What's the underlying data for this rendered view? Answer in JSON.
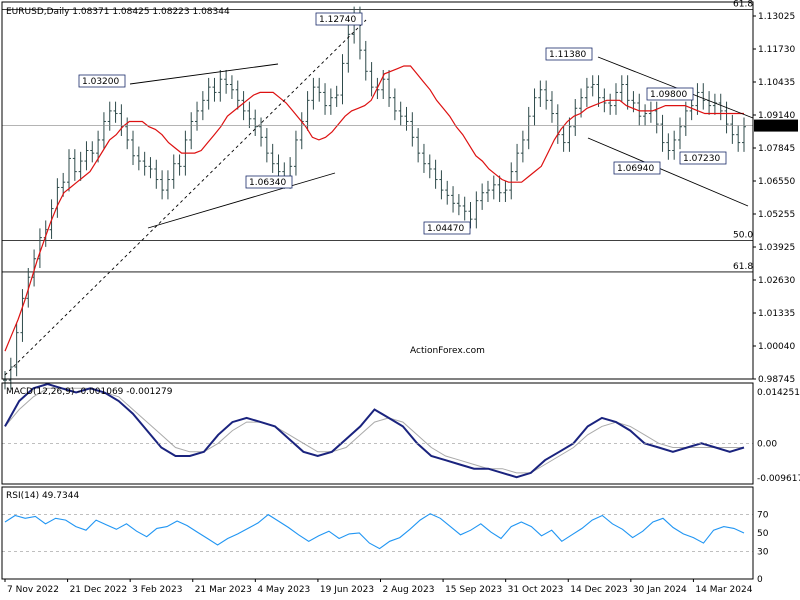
{
  "chart_data": {
    "type": "line",
    "symbol_header": "EURUSD,Daily  1.08371 1.08425 1.08223 1.08344",
    "watermark": "ActionForex.com",
    "last_price": "1.08344",
    "x_tick_labels": [
      "7 Nov 2022",
      "21 Dec 2022",
      "3 Feb 2023",
      "21 Mar 2023",
      "4 May 2023",
      "19 Jun 2023",
      "2 Aug 2023",
      "15 Sep 2023",
      "31 Oct 2023",
      "14 Dec 2023",
      "30 Jan 2024",
      "14 Mar 2024"
    ],
    "price_panel": {
      "ylim": [
        0.98745,
        1.13025
      ],
      "y_tick_labels": [
        "1.13025",
        "1.11730",
        "1.10435",
        "1.09140",
        "1.07845",
        "1.06550",
        "1.05255",
        "1.03925",
        "1.02630",
        "1.01335",
        "1.00040",
        "0.98745"
      ],
      "close_series": [
        0.987,
        0.992,
        1.005,
        1.018,
        1.026,
        1.033,
        1.041,
        1.044,
        1.052,
        1.06,
        1.062,
        1.071,
        1.066,
        1.07,
        1.074,
        1.073,
        1.078,
        1.085,
        1.089,
        1.088,
        1.083,
        1.078,
        1.072,
        1.07,
        1.068,
        1.067,
        1.063,
        1.059,
        1.063,
        1.069,
        1.068,
        1.078,
        1.085,
        1.089,
        1.093,
        1.098,
        1.096,
        1.101,
        1.099,
        1.097,
        1.093,
        1.089,
        1.086,
        1.083,
        1.079,
        1.073,
        1.069,
        1.066,
        1.063,
        1.068,
        1.078,
        1.085,
        1.093,
        1.098,
        1.096,
        1.091,
        1.094,
        1.095,
        1.107,
        1.118,
        1.125,
        1.112,
        1.104,
        1.098,
        1.097,
        1.101,
        1.094,
        1.089,
        1.087,
        1.085,
        1.079,
        1.073,
        1.069,
        1.067,
        1.063,
        1.059,
        1.057,
        1.054,
        1.053,
        1.051,
        1.048,
        1.055,
        1.058,
        1.059,
        1.061,
        1.058,
        1.059,
        1.066,
        1.073,
        1.078,
        1.087,
        1.094,
        1.097,
        1.093,
        1.088,
        1.08,
        1.077,
        1.083,
        1.09,
        1.094,
        1.098,
        1.099,
        1.094,
        1.092,
        1.091,
        1.096,
        1.099,
        1.093,
        1.092,
        1.087,
        1.088,
        1.089,
        1.084,
        1.077,
        1.074,
        1.078,
        1.083,
        1.089,
        1.091,
        1.096,
        1.093,
        1.091,
        1.092,
        1.089,
        1.084,
        1.08,
        1.077,
        1.083
      ],
      "ema_series": [
        0.998,
        1.004,
        1.01,
        1.017,
        1.025,
        1.033,
        1.04,
        1.047,
        1.053,
        1.058,
        1.06,
        1.062,
        1.064,
        1.066,
        1.07,
        1.074,
        1.078,
        1.08,
        1.083,
        1.085,
        1.085,
        1.085,
        1.083,
        1.082,
        1.08,
        1.077,
        1.075,
        1.073,
        1.073,
        1.073,
        1.074,
        1.077,
        1.08,
        1.083,
        1.087,
        1.089,
        1.091,
        1.093,
        1.095,
        1.096,
        1.096,
        1.096,
        1.094,
        1.092,
        1.089,
        1.086,
        1.083,
        1.079,
        1.078,
        1.079,
        1.081,
        1.084,
        1.087,
        1.089,
        1.09,
        1.091,
        1.093,
        1.098,
        1.103,
        1.104,
        1.105,
        1.106,
        1.106,
        1.103,
        1.1,
        1.097,
        1.093,
        1.09,
        1.087,
        1.083,
        1.08,
        1.076,
        1.072,
        1.07,
        1.067,
        1.065,
        1.063,
        1.062,
        1.062,
        1.062,
        1.064,
        1.066,
        1.068,
        1.073,
        1.078,
        1.082,
        1.085,
        1.087,
        1.088,
        1.09,
        1.091,
        1.092,
        1.093,
        1.093,
        1.093,
        1.091,
        1.09,
        1.089,
        1.089,
        1.089,
        1.09,
        1.091,
        1.091,
        1.091,
        1.091,
        1.09,
        1.089,
        1.088,
        1.088,
        1.088,
        1.088,
        1.088,
        1.088,
        1.088
      ],
      "horizontal_levels": [
        {
          "value": 1.1274,
          "label": "61.8"
        },
        {
          "value": 1.0399,
          "label": "50.0"
        },
        {
          "value": 1.028,
          "label": "61.8"
        }
      ],
      "annotations": [
        {
          "text": "1.03200",
          "value": 1.032
        },
        {
          "text": "1.12740",
          "value": 1.1274
        },
        {
          "text": "1.06340",
          "value": 1.0634
        },
        {
          "text": "1.04470",
          "value": 1.0447
        },
        {
          "text": "1.11380",
          "value": 1.1138
        },
        {
          "text": "1.09800",
          "value": 1.098
        },
        {
          "text": "1.06940",
          "value": 1.0694
        },
        {
          "text": "1.07230",
          "value": 1.0723
        }
      ]
    },
    "macd_panel": {
      "header": "MACD(12,26,9) -0.001069 -0.001279",
      "y_tick_labels": [
        "0.014251",
        "0.00",
        "-0.009617"
      ],
      "ylim": [
        -0.009617,
        0.014251
      ],
      "macd_series": [
        0.004,
        0.01,
        0.013,
        0.014,
        0.013,
        0.012,
        0.013,
        0.012,
        0.01,
        0.007,
        0.003,
        -0.001,
        -0.003,
        -0.003,
        -0.002,
        0.002,
        0.005,
        0.006,
        0.005,
        0.004,
        0.001,
        -0.002,
        -0.003,
        -0.002,
        0.001,
        0.004,
        0.008,
        0.006,
        0.004,
        0.0,
        -0.003,
        -0.004,
        -0.005,
        -0.006,
        -0.006,
        -0.007,
        -0.008,
        -0.007,
        -0.004,
        -0.002,
        0.0,
        0.004,
        0.006,
        0.005,
        0.003,
        0.0,
        -0.001,
        -0.002,
        -0.001,
        0.0,
        -0.001,
        -0.002,
        -0.001
      ],
      "signal_series": [
        0.004,
        0.008,
        0.011,
        0.013,
        0.013,
        0.013,
        0.013,
        0.012,
        0.011,
        0.008,
        0.005,
        0.002,
        -0.001,
        -0.002,
        -0.002,
        0.0,
        0.003,
        0.005,
        0.005,
        0.004,
        0.002,
        0.0,
        -0.002,
        -0.002,
        -0.001,
        0.002,
        0.005,
        0.006,
        0.005,
        0.002,
        -0.001,
        -0.003,
        -0.004,
        -0.005,
        -0.006,
        -0.006,
        -0.007,
        -0.007,
        -0.005,
        -0.003,
        -0.001,
        0.002,
        0.004,
        0.005,
        0.004,
        0.002,
        0.0,
        -0.001,
        -0.001,
        -0.001,
        -0.001,
        -0.001,
        -0.001
      ]
    },
    "rsi_panel": {
      "header": "RSI(14) 49.7344",
      "y_tick_labels": [
        "70",
        "50",
        "30",
        "0"
      ],
      "ylim": [
        0,
        100
      ],
      "levels": [
        70,
        30
      ],
      "rsi_series": [
        62,
        69,
        66,
        68,
        60,
        66,
        64,
        57,
        53,
        64,
        59,
        54,
        60,
        52,
        46,
        55,
        57,
        63,
        58,
        51,
        44,
        37,
        44,
        49,
        55,
        61,
        70,
        63,
        56,
        48,
        41,
        47,
        52,
        44,
        49,
        50,
        39,
        33,
        41,
        45,
        54,
        64,
        71,
        66,
        57,
        48,
        53,
        60,
        51,
        44,
        57,
        62,
        57,
        47,
        53,
        41,
        48,
        55,
        64,
        69,
        60,
        54,
        45,
        52,
        62,
        66,
        56,
        49,
        45,
        39,
        53,
        57,
        55,
        50
      ]
    }
  }
}
